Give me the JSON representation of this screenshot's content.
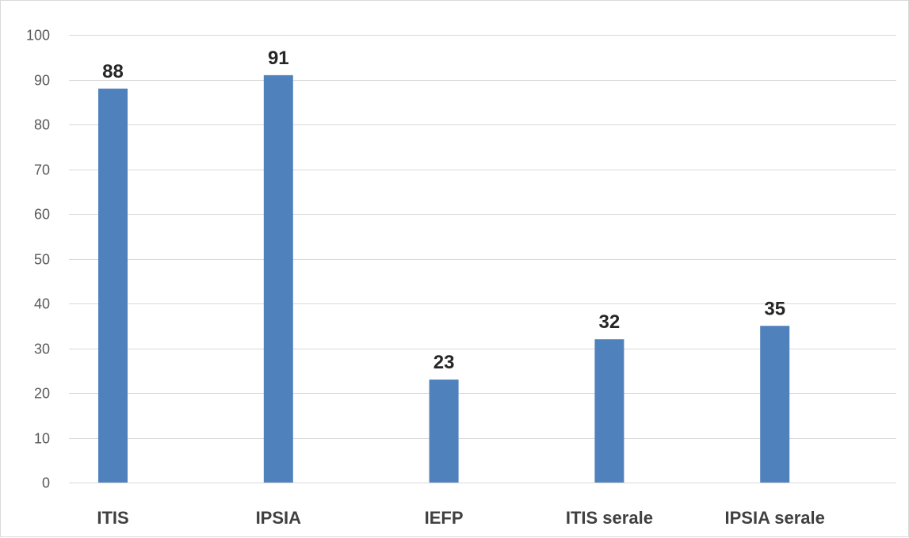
{
  "chart_data": {
    "type": "bar",
    "categories": [
      "ITIS",
      "IPSIA",
      "IEFP",
      "ITIS serale",
      "IPSIA serale"
    ],
    "values": [
      88,
      91,
      23,
      32,
      35
    ],
    "data_labels": [
      "88",
      "91",
      "23",
      "32",
      "35"
    ],
    "title": "",
    "xlabel": "",
    "ylabel": "",
    "ylim": [
      0,
      100
    ],
    "yticks": [
      0,
      10,
      20,
      30,
      40,
      50,
      60,
      70,
      80,
      90,
      100
    ],
    "ytick_labels": [
      "0",
      "10",
      "20",
      "30",
      "40",
      "50",
      "60",
      "70",
      "80",
      "90",
      "100"
    ],
    "grid": true,
    "legend": "none",
    "bar_color": "#4F81BD"
  }
}
